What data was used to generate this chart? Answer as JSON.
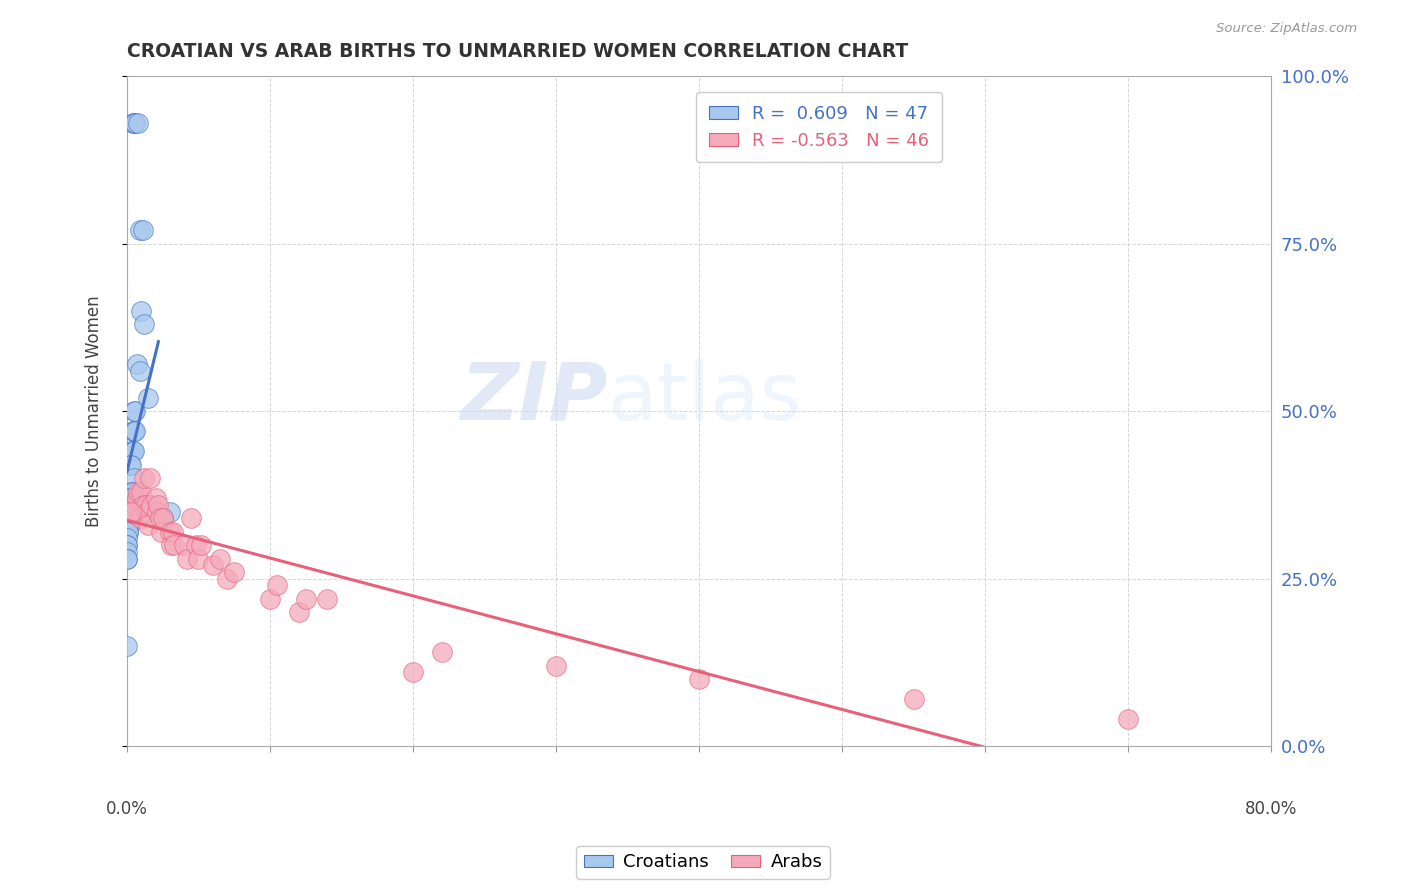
{
  "title": "CROATIAN VS ARAB BIRTHS TO UNMARRIED WOMEN CORRELATION CHART",
  "source": "Source: ZipAtlas.com",
  "ylabel": "Births to Unmarried Women",
  "legend_croatians": "Croatians",
  "legend_arabs": "Arabs",
  "R_croatians": 0.609,
  "N_croatians": 47,
  "R_arabs": -0.563,
  "N_arabs": 46,
  "croatian_color": "#A8C8EE",
  "arab_color": "#F4AABB",
  "trendline_croatian": "#4472C4",
  "trendline_arab": "#E8607A",
  "watermark_zip": "ZIP",
  "watermark_atlas": "atlas",
  "background": "#FFFFFF",
  "grid_color": "#CCCCCC",
  "xmin": 0.0,
  "xmax": 80.0,
  "ymin": 0.0,
  "ymax": 100.0,
  "croatian_dots": [
    [
      0.4,
      93.0
    ],
    [
      0.5,
      93.0
    ],
    [
      0.6,
      93.0
    ],
    [
      0.8,
      93.0
    ],
    [
      0.9,
      77.0
    ],
    [
      1.1,
      77.0
    ],
    [
      1.0,
      65.0
    ],
    [
      1.2,
      63.0
    ],
    [
      0.7,
      57.0
    ],
    [
      0.9,
      56.0
    ],
    [
      0.5,
      50.0
    ],
    [
      0.6,
      50.0
    ],
    [
      0.4,
      47.0
    ],
    [
      0.5,
      47.0
    ],
    [
      0.6,
      47.0
    ],
    [
      0.3,
      44.0
    ],
    [
      0.4,
      44.0
    ],
    [
      0.5,
      44.0
    ],
    [
      0.2,
      42.0
    ],
    [
      0.3,
      42.0
    ],
    [
      0.5,
      40.0
    ],
    [
      0.3,
      38.0
    ],
    [
      0.4,
      38.0
    ],
    [
      1.5,
      52.0
    ],
    [
      0.2,
      37.0
    ],
    [
      0.3,
      37.0
    ],
    [
      0.1,
      35.0
    ],
    [
      0.15,
      35.0
    ],
    [
      0.2,
      35.0
    ],
    [
      0.1,
      34.0
    ],
    [
      0.15,
      34.0
    ],
    [
      0.05,
      33.0
    ],
    [
      0.1,
      33.0
    ],
    [
      0.15,
      33.0
    ],
    [
      0.05,
      32.0
    ],
    [
      0.08,
      32.0
    ],
    [
      0.04,
      31.0
    ],
    [
      0.03,
      30.0
    ],
    [
      0.04,
      30.0
    ],
    [
      0.02,
      29.0
    ],
    [
      0.02,
      28.0
    ],
    [
      0.03,
      28.0
    ],
    [
      0.01,
      15.0
    ],
    [
      0.5,
      35.0
    ],
    [
      3.0,
      35.0
    ],
    [
      0.8,
      36.0
    ],
    [
      2.5,
      34.0
    ]
  ],
  "arab_dots": [
    [
      0.4,
      35.0
    ],
    [
      0.5,
      35.0
    ],
    [
      0.6,
      36.0
    ],
    [
      0.7,
      37.0
    ],
    [
      0.8,
      38.0
    ],
    [
      0.9,
      34.0
    ],
    [
      1.0,
      38.0
    ],
    [
      1.1,
      36.0
    ],
    [
      1.2,
      40.0
    ],
    [
      1.3,
      36.0
    ],
    [
      1.4,
      35.0
    ],
    [
      1.5,
      33.0
    ],
    [
      1.6,
      40.0
    ],
    [
      1.7,
      36.0
    ],
    [
      2.0,
      37.0
    ],
    [
      2.1,
      35.0
    ],
    [
      2.2,
      36.0
    ],
    [
      2.3,
      34.0
    ],
    [
      2.4,
      32.0
    ],
    [
      2.5,
      34.0
    ],
    [
      3.0,
      32.0
    ],
    [
      3.1,
      30.0
    ],
    [
      3.2,
      32.0
    ],
    [
      3.3,
      30.0
    ],
    [
      4.0,
      30.0
    ],
    [
      4.2,
      28.0
    ],
    [
      4.5,
      34.0
    ],
    [
      4.8,
      30.0
    ],
    [
      5.0,
      28.0
    ],
    [
      5.2,
      30.0
    ],
    [
      6.0,
      27.0
    ],
    [
      6.5,
      28.0
    ],
    [
      7.0,
      25.0
    ],
    [
      7.5,
      26.0
    ],
    [
      10.0,
      22.0
    ],
    [
      10.5,
      24.0
    ],
    [
      12.0,
      20.0
    ],
    [
      12.5,
      22.0
    ],
    [
      14.0,
      22.0
    ],
    [
      20.0,
      11.0
    ],
    [
      22.0,
      14.0
    ],
    [
      30.0,
      12.0
    ],
    [
      40.0,
      10.0
    ],
    [
      55.0,
      7.0
    ],
    [
      70.0,
      4.0
    ],
    [
      0.3,
      35.0
    ]
  ],
  "croatian_trend_x": [
    0.0,
    2.2
  ],
  "arab_trend_x": [
    0.0,
    80.0
  ]
}
